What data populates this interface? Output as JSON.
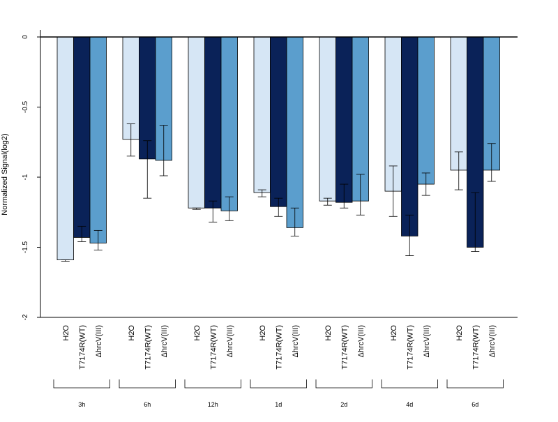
{
  "chart_data": {
    "type": "bar",
    "title": "",
    "xlabel": "",
    "ylabel": "Normalized Signal(log2)",
    "ylim": [
      -2,
      0
    ],
    "yticks": [
      "0",
      "-0.5",
      "-1",
      "-1.5",
      "-2"
    ],
    "ytick_values": [
      0,
      -0.5,
      -1,
      -1.5,
      -2
    ],
    "bar_labels": [
      "H2O",
      "T7174R(WT)",
      "ΔhrcV(III)"
    ],
    "groups": [
      "3h",
      "6h",
      "12h",
      "1d",
      "2d",
      "4d",
      "6d"
    ],
    "colors": [
      "#d6e6f5",
      "#0a2258",
      "#5b9ecd"
    ],
    "grid": false,
    "series": [
      {
        "values": [
          -1.59,
          -0.73,
          -1.22,
          -1.11,
          -1.17,
          -1.1,
          -0.95
        ],
        "err_lo": [
          -1.6,
          -0.85,
          -1.23,
          -1.14,
          -1.2,
          -1.28,
          -1.09
        ],
        "err_hi": [
          -1.59,
          -0.62,
          -1.22,
          -1.09,
          -1.15,
          -0.92,
          -0.82
        ]
      },
      {
        "values": [
          -1.43,
          -0.87,
          -1.22,
          -1.21,
          -1.18,
          -1.42,
          -1.5
        ],
        "err_lo": [
          -1.46,
          -1.15,
          -1.32,
          -1.28,
          -1.22,
          -1.56,
          -1.53
        ],
        "err_hi": [
          -1.35,
          -0.74,
          -1.17,
          -1.15,
          -1.05,
          -1.27,
          -1.11
        ]
      },
      {
        "values": [
          -1.47,
          -0.88,
          -1.24,
          -1.36,
          -1.17,
          -1.05,
          -0.95
        ],
        "err_lo": [
          -1.52,
          -0.99,
          -1.31,
          -1.42,
          -1.27,
          -1.13,
          -1.03
        ],
        "err_hi": [
          -1.38,
          -0.63,
          -1.14,
          -1.22,
          -0.98,
          -0.97,
          -0.76
        ]
      }
    ]
  }
}
